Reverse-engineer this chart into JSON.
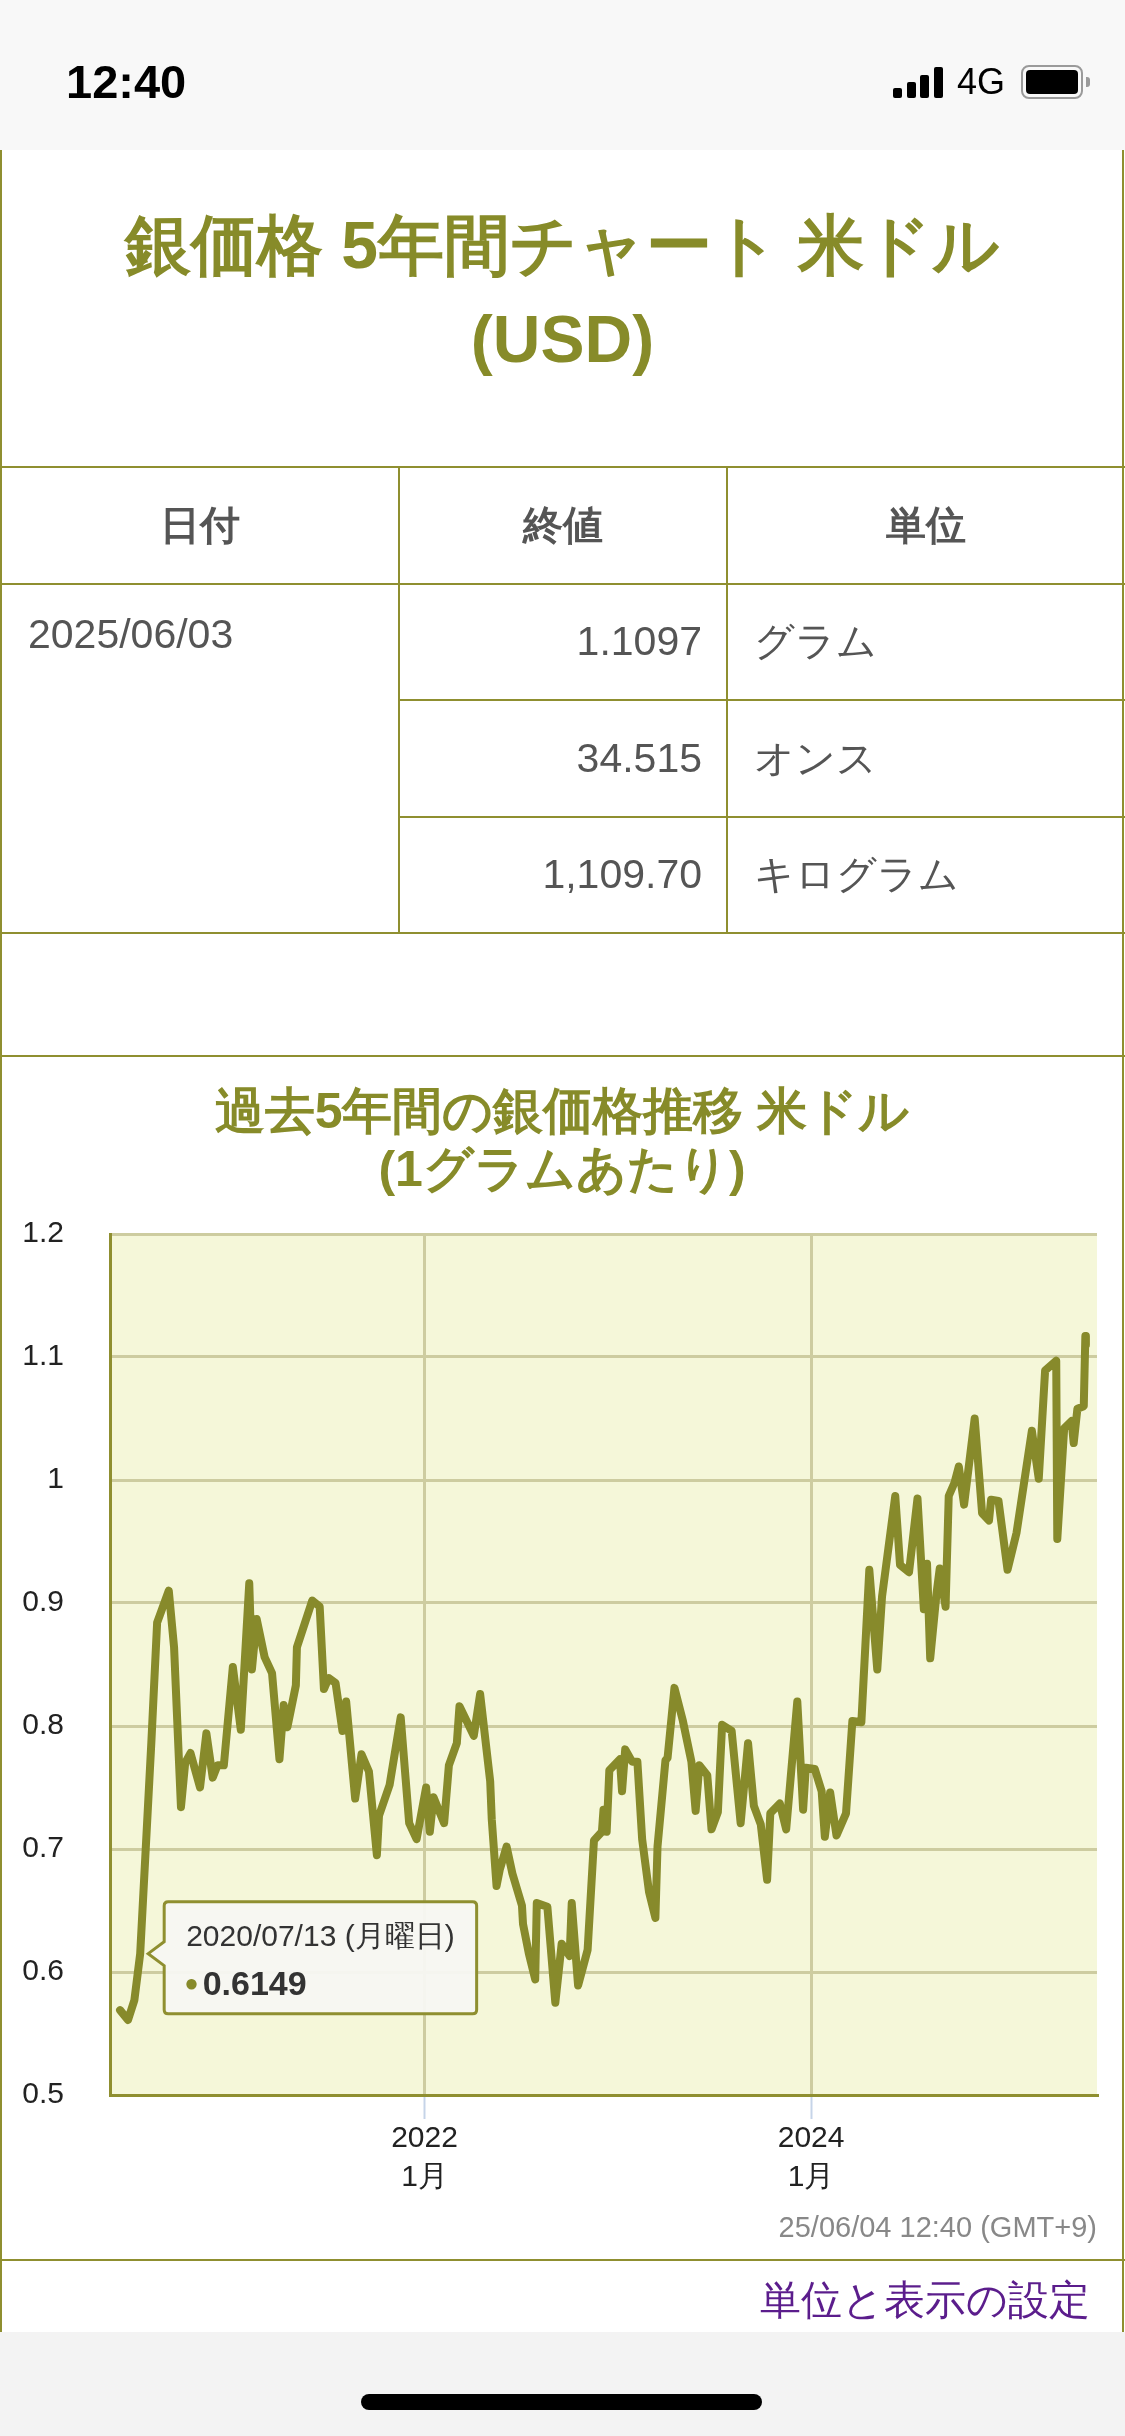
{
  "chart_data": [
    {
      "type": "other",
      "title": "銀価格 5年間チャート 米ドル (USD)",
      "annotations": [
        "12:40",
        "4G",
        "日付",
        "終値",
        "単位",
        "2025/06/03",
        "1.1097",
        "グラム",
        "34.515",
        "オンス",
        "1,109.70",
        "キログラム"
      ]
    },
    {
      "type": "line",
      "title": "過去5年間の銀価格推移 米ドル (1グラムあたり)",
      "x": [
        "2020-06-05",
        "2020-06-20",
        "2020-07-02",
        "2020-07-13",
        "2020-08-03",
        "2020-08-14",
        "2020-09-05",
        "2020-09-15",
        "2020-09-28",
        "2020-10-06",
        "2020-10-16",
        "2020-11-03",
        "2020-11-15",
        "2020-11-27",
        "2020-12-06",
        "2020-12-18",
        "2021-01-04",
        "2021-01-19",
        "2021-02-04",
        "2021-02-09",
        "2021-02-18",
        "2021-03-05",
        "2021-03-19",
        "2021-04-02",
        "2021-04-10",
        "2021-04-17",
        "2021-05-03",
        "2021-05-05",
        "2021-06-03",
        "2021-06-17",
        "2021-06-25",
        "2021-07-04",
        "2021-07-17",
        "2021-07-30",
        "2021-08-06",
        "2021-08-23",
        "2021-09-04",
        "2021-09-18",
        "2021-10-03",
        "2021-10-07",
        "2021-10-27",
        "2021-11-17",
        "2021-12-03",
        "2021-12-17",
        "2022-01-04",
        "2022-01-11",
        "2022-01-18",
        "2022-02-07",
        "2022-02-16",
        "2022-03-03",
        "2022-03-08",
        "2022-04-04",
        "2022-04-16",
        "2022-05-05",
        "2022-05-08",
        "2022-05-17",
        "2022-05-23",
        "2022-06-05",
        "2022-06-16",
        "2022-07-04",
        "2022-07-06",
        "2022-07-17",
        "2022-07-29",
        "2022-08-01",
        "2022-08-21",
        "2022-09-05",
        "2022-09-17",
        "2022-10-02",
        "2022-10-06",
        "2022-10-18",
        "2022-11-05",
        "2022-11-07",
        "2022-11-17",
        "2022-12-02",
        "2022-12-05",
        "2022-12-11",
        "2022-12-16",
        "2023-01-05",
        "2023-01-09",
        "2023-01-15",
        "2023-01-28",
        "2023-02-07",
        "2023-02-16",
        "2023-03-01",
        "2023-03-13",
        "2023-03-17",
        "2023-04-01",
        "2023-04-05",
        "2023-04-18",
        "2023-05-04",
        "2023-05-20",
        "2023-05-28",
        "2023-06-04",
        "2023-06-19",
        "2023-06-27",
        "2023-07-09",
        "2023-07-17",
        "2023-08-04",
        "2023-08-21",
        "2023-09-04",
        "2023-09-15",
        "2023-09-28",
        "2023-10-10",
        "2023-10-16",
        "2023-11-03",
        "2023-11-15",
        "2023-12-06",
        "2023-12-17",
        "2023-12-22",
        "2024-01-08",
        "2024-01-21",
        "2024-01-27",
        "2024-02-06",
        "2024-02-18",
        "2024-03-07",
        "2024-03-19",
        "2024-04-05",
        "2024-04-20",
        "2024-05-05",
        "2024-05-14",
        "2024-06-08",
        "2024-06-17",
        "2024-07-04",
        "2024-07-20",
        "2024-08-01",
        "2024-08-07",
        "2024-08-13",
        "2024-08-25",
        "2024-08-31",
        "2024-09-11",
        "2024-09-17",
        "2024-09-28",
        "2024-10-06",
        "2024-10-16",
        "2024-11-05",
        "2024-11-19",
        "2024-12-02",
        "2024-12-06",
        "2024-12-20",
        "2025-01-06",
        "2025-01-23",
        "2025-02-21",
        "2025-03-06",
        "2025-03-18",
        "2025-04-08",
        "2025-04-10",
        "2025-04-23",
        "2025-05-07",
        "2025-05-11",
        "2025-05-18",
        "2025-05-30",
        "2025-06-02",
        "2025-06-03"
      ],
      "values": [
        0.569,
        0.561,
        0.577,
        0.6149,
        0.786,
        0.884,
        0.91,
        0.864,
        0.734,
        0.77,
        0.778,
        0.75,
        0.794,
        0.758,
        0.768,
        0.768,
        0.848,
        0.797,
        0.916,
        0.846,
        0.887,
        0.856,
        0.843,
        0.773,
        0.817,
        0.799,
        0.833,
        0.864,
        0.902,
        0.897,
        0.83,
        0.839,
        0.835,
        0.796,
        0.82,
        0.741,
        0.777,
        0.763,
        0.695,
        0.727,
        0.752,
        0.807,
        0.721,
        0.708,
        0.75,
        0.714,
        0.742,
        0.721,
        0.768,
        0.786,
        0.816,
        0.792,
        0.826,
        0.755,
        0.724,
        0.67,
        0.683,
        0.702,
        0.68,
        0.654,
        0.639,
        0.615,
        0.594,
        0.656,
        0.653,
        0.575,
        0.623,
        0.613,
        0.656,
        0.589,
        0.618,
        0.633,
        0.707,
        0.714,
        0.732,
        0.714,
        0.764,
        0.773,
        0.747,
        0.781,
        0.771,
        0.771,
        0.708,
        0.665,
        0.644,
        0.702,
        0.772,
        0.774,
        0.831,
        0.804,
        0.771,
        0.731,
        0.768,
        0.76,
        0.716,
        0.73,
        0.801,
        0.796,
        0.721,
        0.786,
        0.735,
        0.72,
        0.675,
        0.729,
        0.737,
        0.716,
        0.82,
        0.732,
        0.766,
        0.765,
        0.747,
        0.71,
        0.746,
        0.711,
        0.729,
        0.804,
        0.803,
        0.927,
        0.846,
        0.905,
        0.987,
        0.931,
        0.925,
        0.985,
        0.895,
        0.932,
        0.855,
        0.908,
        0.928,
        0.897,
        0.987,
        0.998,
        1.011,
        0.98,
        1.05,
        0.973,
        0.967,
        0.984,
        0.983,
        0.927,
        0.957,
        1.04,
        1.001,
        1.089,
        1.097,
        0.952,
        1.042,
        1.048,
        1.03,
        1.058,
        1.06,
        1.117,
        1.1097
      ],
      "color": "#878a2b",
      "xlim": [
        "2020-05-17",
        "2025-06-24"
      ],
      "xticks": [
        {
          "value": "2022-01-01",
          "label": "2022\n1月"
        },
        {
          "value": "2024-01-01",
          "label": "2024\n1月"
        }
      ],
      "ylim": [
        0.5,
        1.2
      ],
      "yticks": [
        0.5,
        0.6,
        0.7,
        0.8,
        0.9,
        1,
        1.1,
        1.2
      ],
      "grid": true,
      "annotations": [
        {
          "text": "2020/07/13 (月曜日)\n●0.6149",
          "x": "2020-07-13",
          "y": 0.6149
        },
        "25/06/04 12:40 (GMT+9)",
        "単位と表示の設定"
      ]
    }
  ]
}
